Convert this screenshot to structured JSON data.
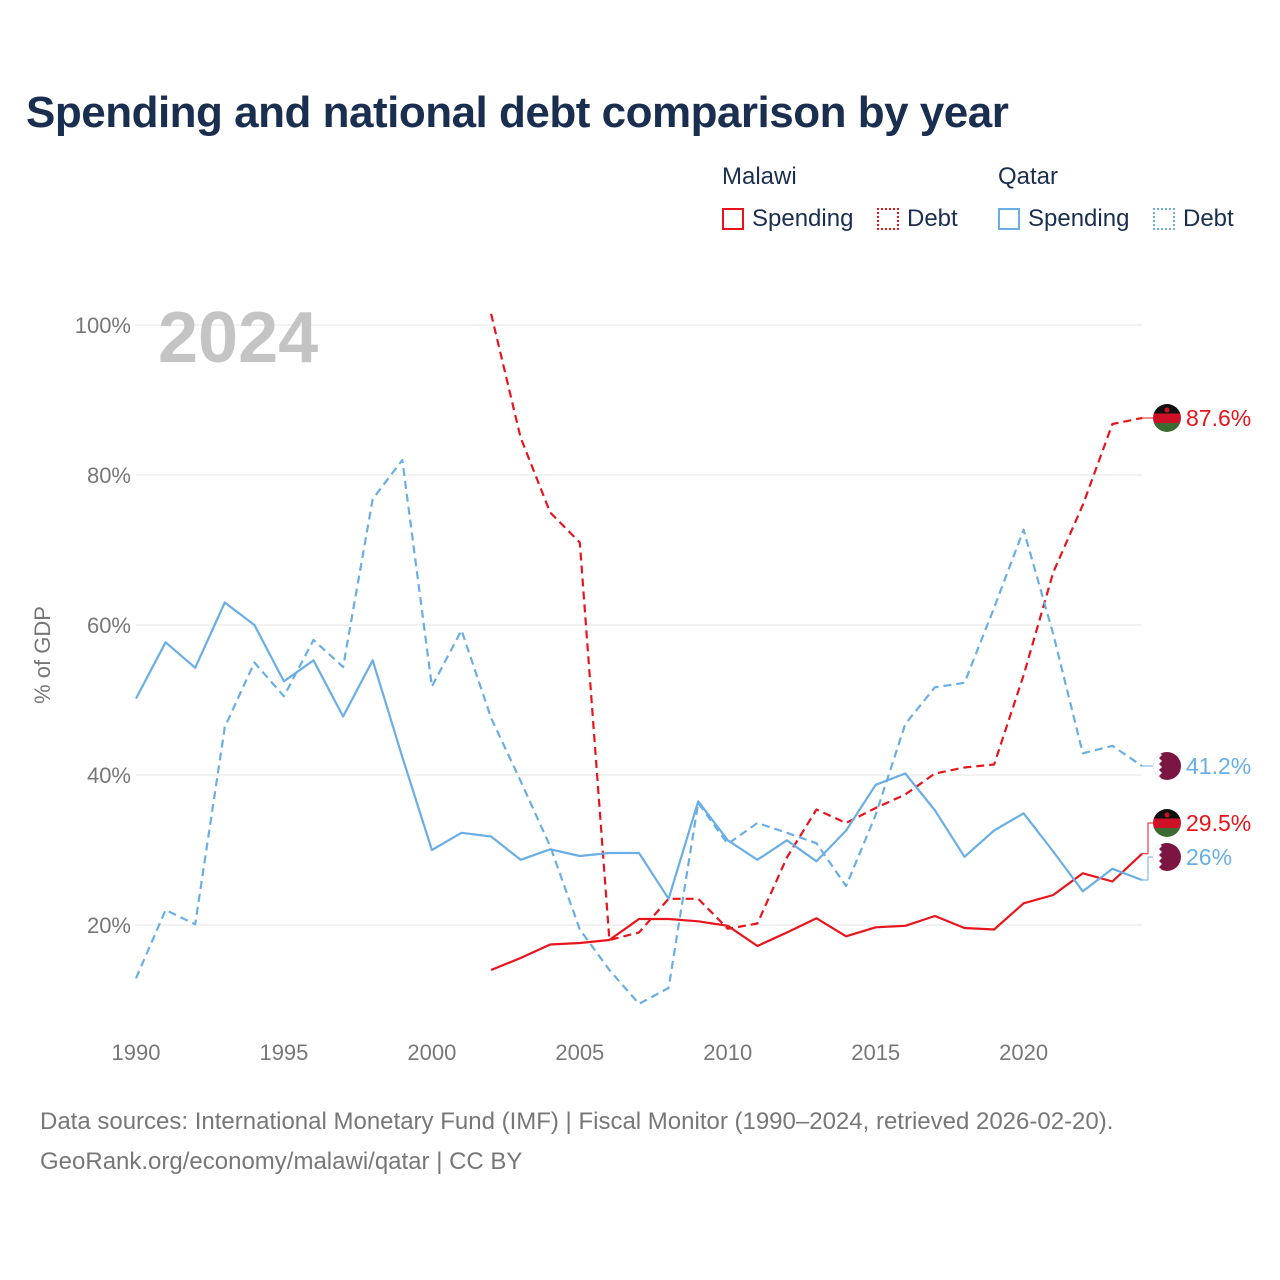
{
  "title": "Spending and national debt comparison by year",
  "legend": {
    "groups": [
      {
        "name": "Malawi",
        "items": [
          "Spending",
          "Debt"
        ]
      },
      {
        "name": "Qatar",
        "items": [
          "Spending",
          "Debt"
        ]
      }
    ]
  },
  "footer": {
    "line1": "Data sources: International Monetary Fund (IMF) | Fiscal Monitor (1990–2024, retrieved 2026-02-20).",
    "line2": "GeoRank.org/economy/malawi/qatar | CC BY"
  },
  "colors": {
    "malawi": "#e8141b",
    "qatar": "#6aaee6",
    "grid": "#e6e6e6",
    "axis_text": "#777777",
    "watermark": "#c4c4c4"
  },
  "chart_data": {
    "type": "line",
    "watermark_year": "2024",
    "ylabel": "% of GDP",
    "xlim": [
      1990,
      2024
    ],
    "ylim": [
      10,
      102
    ],
    "x_ticks": [
      1990,
      1995,
      2000,
      2005,
      2010,
      2015,
      2020
    ],
    "y_ticks": [
      20,
      40,
      60,
      80,
      100
    ],
    "y_tick_labels": [
      "20%",
      "40%",
      "60%",
      "80%",
      "100%"
    ],
    "series": [
      {
        "name": "Malawi Spending",
        "country": "Malawi",
        "style": "solid",
        "color": "#e8141b",
        "x": [
          2002,
          2003,
          2004,
          2005,
          2006,
          2007,
          2008,
          2009,
          2010,
          2011,
          2012,
          2013,
          2014,
          2015,
          2016,
          2017,
          2018,
          2019,
          2020,
          2021,
          2022,
          2023,
          2024
        ],
        "values": [
          14,
          15.6,
          17.4,
          17.6,
          18,
          20.8,
          20.8,
          20.5,
          19.9,
          17.2,
          19,
          20.9,
          18.5,
          19.7,
          19.9,
          21.2,
          19.6,
          19.4,
          22.9,
          24,
          26.9,
          25.8,
          29.5
        ],
        "end_label": "29.5%"
      },
      {
        "name": "Malawi Debt",
        "country": "Malawi",
        "style": "dashed",
        "color": "#e8141b",
        "x": [
          2002,
          2003,
          2004,
          2005,
          2006,
          2007,
          2008,
          2009,
          2010,
          2011,
          2012,
          2013,
          2014,
          2015,
          2016,
          2017,
          2018,
          2019,
          2020,
          2021,
          2022,
          2023,
          2024
        ],
        "values": [
          101.5,
          85,
          75,
          71,
          18,
          19,
          23.5,
          23.5,
          19.5,
          20.2,
          29,
          35.4,
          33.6,
          35.6,
          37.4,
          40.2,
          41,
          41.4,
          53.3,
          67,
          76,
          86.8,
          87.6
        ],
        "end_label": "87.6%"
      },
      {
        "name": "Qatar Spending",
        "country": "Qatar",
        "style": "solid",
        "color": "#6aaee6",
        "x": [
          1990,
          1991,
          1992,
          1993,
          1994,
          1995,
          1996,
          1997,
          1998,
          1999,
          2000,
          2001,
          2002,
          2003,
          2004,
          2005,
          2006,
          2007,
          2008,
          2009,
          2010,
          2011,
          2012,
          2013,
          2014,
          2015,
          2016,
          2017,
          2018,
          2019,
          2020,
          2021,
          2022,
          2023,
          2024
        ],
        "values": [
          50.2,
          57.7,
          54.3,
          63,
          60,
          52.5,
          55.3,
          47.8,
          55.3,
          42.4,
          30,
          32.3,
          31.8,
          28.7,
          30.1,
          29.2,
          29.6,
          29.6,
          23.5,
          36.5,
          31.3,
          28.7,
          31.3,
          28.5,
          32.6,
          38.7,
          40.2,
          35.3,
          29.1,
          32.6,
          34.9,
          29.8,
          24.5,
          27.5,
          26
        ],
        "end_label": "26%"
      },
      {
        "name": "Qatar Debt",
        "country": "Qatar",
        "style": "dashed",
        "color": "#6aaee6",
        "x": [
          1990,
          1991,
          1992,
          1993,
          1994,
          1995,
          1996,
          1997,
          1998,
          1999,
          2000,
          2001,
          2002,
          2003,
          2004,
          2005,
          2006,
          2007,
          2008,
          2009,
          2010,
          2011,
          2012,
          2013,
          2014,
          2015,
          2016,
          2017,
          2018,
          2019,
          2020,
          2021,
          2022,
          2023,
          2024
        ],
        "values": [
          12.9,
          22,
          20.1,
          46.4,
          55,
          50.5,
          58,
          54.4,
          76.8,
          82,
          51.8,
          59.3,
          47.6,
          39.2,
          30.5,
          19.4,
          14,
          9.5,
          11.6,
          36.3,
          30.8,
          33.6,
          32.3,
          30.9,
          25.2,
          34.7,
          46.8,
          51.7,
          52.3,
          62.3,
          72.7,
          58.8,
          42.9,
          43.9,
          41.2
        ],
        "end_label": "41.2%"
      }
    ]
  }
}
